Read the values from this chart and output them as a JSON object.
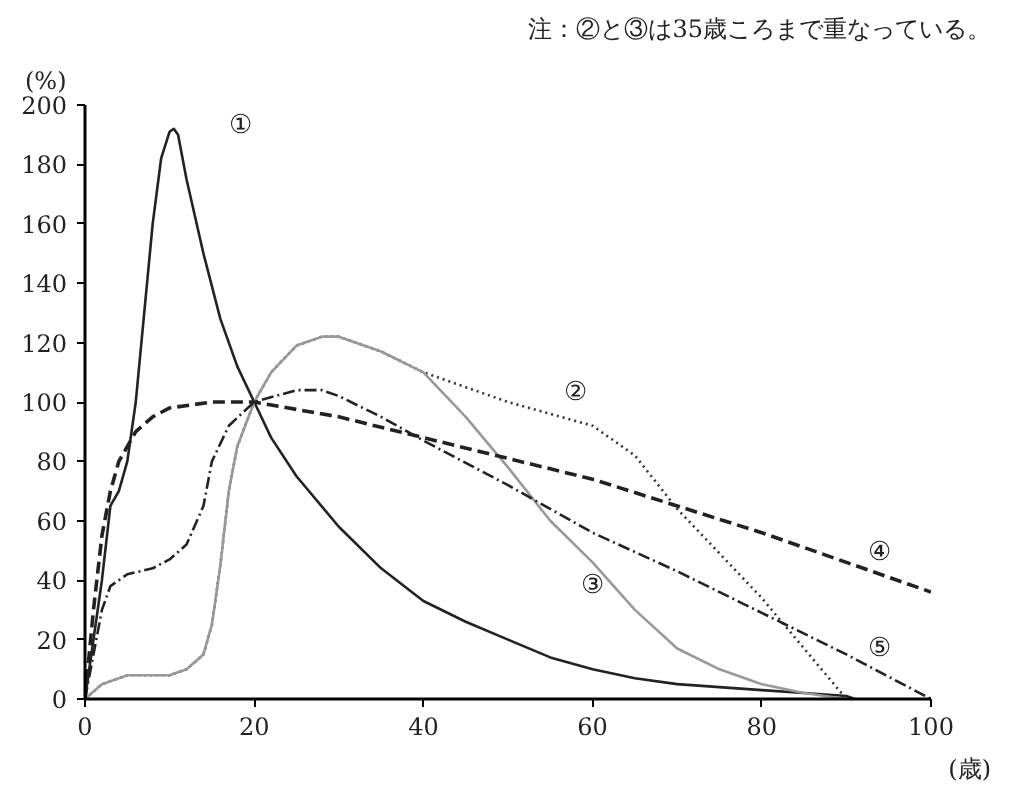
{
  "chart_data": {
    "type": "line",
    "ylabel": "(%)",
    "xlabel": "(歳)",
    "xlim": [
      0,
      100
    ],
    "xticks": [
      0,
      20,
      40,
      60,
      80,
      100
    ],
    "ylim": [
      0,
      200
    ],
    "yticks": [
      0,
      20,
      40,
      60,
      80,
      100,
      120,
      140,
      160,
      180,
      200
    ],
    "grid": false,
    "series": [
      {
        "name": "①",
        "color": "#222222",
        "line_style": "solid",
        "x": [
          0,
          2,
          3,
          4,
          5,
          6,
          7,
          8,
          9,
          10,
          10.5,
          11,
          12,
          14,
          16,
          18,
          20,
          22,
          25,
          30,
          35,
          40,
          45,
          50,
          55,
          60,
          65,
          70,
          75,
          80,
          85,
          90,
          91
        ],
        "values": [
          0,
          40,
          65,
          70,
          80,
          100,
          130,
          160,
          182,
          191,
          192,
          190,
          175,
          150,
          128,
          112,
          100,
          88,
          75,
          58,
          44,
          33,
          26,
          20,
          14,
          10,
          7,
          5,
          4,
          3,
          2,
          1,
          0
        ]
      },
      {
        "name": "②",
        "color": "#333333",
        "line_style": "dotted",
        "x": [
          0,
          2,
          5,
          10,
          12,
          14,
          15,
          16,
          17,
          18,
          20,
          22,
          25,
          28,
          30,
          35,
          40,
          45,
          50,
          55,
          60,
          65,
          70,
          75,
          80,
          85,
          90
        ],
        "values": [
          0,
          5,
          8,
          8,
          10,
          15,
          25,
          45,
          70,
          85,
          100,
          110,
          119,
          122,
          122,
          117,
          110,
          105,
          100,
          96,
          92,
          82,
          64,
          49,
          34,
          17,
          0
        ]
      },
      {
        "name": "③",
        "color": "#999999",
        "line_style": "solid",
        "x": [
          0,
          2,
          5,
          10,
          12,
          14,
          15,
          16,
          17,
          18,
          20,
          22,
          25,
          28,
          30,
          35,
          40,
          45,
          50,
          55,
          60,
          65,
          70,
          75,
          80,
          85,
          90
        ],
        "values": [
          0,
          5,
          8,
          8,
          10,
          15,
          25,
          45,
          70,
          85,
          100,
          110,
          119,
          122,
          122,
          117,
          110,
          95,
          78,
          60,
          46,
          30,
          17,
          10,
          5,
          2,
          0
        ]
      },
      {
        "name": "④",
        "color": "#222222",
        "line_style": "dashed",
        "x": [
          0,
          1,
          2,
          3,
          4,
          6,
          8,
          10,
          15,
          20,
          30,
          40,
          50,
          60,
          70,
          80,
          90,
          100
        ],
        "values": [
          0,
          30,
          55,
          70,
          80,
          90,
          95,
          98,
          100,
          100,
          95,
          88,
          81,
          74,
          65,
          56,
          46,
          36
        ]
      },
      {
        "name": "⑤",
        "color": "#222222",
        "line_style": "dashdot",
        "x": [
          0,
          2,
          3,
          5,
          8,
          10,
          12,
          14,
          15,
          17,
          20,
          25,
          28,
          30,
          35,
          40,
          50,
          60,
          70,
          80,
          90,
          100
        ],
        "values": [
          0,
          30,
          38,
          42,
          44,
          47,
          52,
          65,
          80,
          92,
          100,
          104,
          104,
          102,
          95,
          87,
          72,
          56,
          43,
          29,
          15,
          0
        ]
      }
    ],
    "annotations": [
      "注：②と③は35歳ころまで重なっている。"
    ]
  }
}
